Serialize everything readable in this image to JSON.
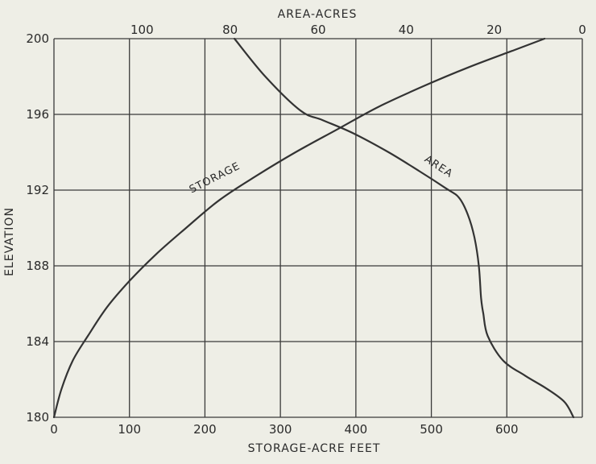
{
  "chart_data": {
    "type": "line",
    "title": "",
    "xlabel": "STORAGE-ACRE FEET",
    "x2label": "AREA-ACRES",
    "ylabel": "ELEVATION",
    "xlim": [
      0,
      700
    ],
    "x2lim": [
      120,
      0
    ],
    "ylim": [
      180,
      200
    ],
    "x_ticks": [
      0,
      100,
      200,
      300,
      400,
      500,
      600
    ],
    "x_tick_labels": [
      "0",
      "100",
      "200",
      "300",
      "400",
      "500",
      "600"
    ],
    "x2_ticks": [
      100,
      80,
      60,
      40,
      20,
      0
    ],
    "x2_tick_labels": [
      "100",
      "80",
      "60",
      "40",
      "20",
      "0"
    ],
    "y_ticks": [
      180,
      184,
      188,
      192,
      196,
      200
    ],
    "y_tick_labels": [
      "180",
      "184",
      "188",
      "192",
      "196",
      "200"
    ],
    "grid": true,
    "grid_x": [
      0,
      100,
      200,
      300,
      400,
      500,
      600,
      700
    ],
    "grid_y": [
      180,
      184,
      188,
      192,
      196,
      200
    ],
    "series": [
      {
        "name": "STORAGE",
        "axis": "bottom",
        "x": [
          0,
          10,
          25,
          45,
          70,
          100,
          135,
          175,
          220,
          270,
          320,
          375,
          430,
          490,
          550,
          610,
          650
        ],
        "y": [
          180,
          181.5,
          183,
          184.3,
          185.8,
          187.2,
          188.6,
          190.0,
          191.5,
          192.8,
          194.0,
          195.2,
          196.4,
          197.5,
          198.5,
          199.4,
          200
        ]
      },
      {
        "name": "AREA",
        "axis": "top",
        "x": [
          79,
          72,
          64,
          59,
          52,
          44,
          37,
          31,
          28,
          26,
          24.5,
          23.5,
          23,
          22.5,
          21.5,
          18,
          13,
          8,
          4,
          2
        ],
        "y": [
          200,
          198,
          196.2,
          195.7,
          195.0,
          194.0,
          193.0,
          192.1,
          191.6,
          190.7,
          189.5,
          188.0,
          186.3,
          185.5,
          184.3,
          183.0,
          182.2,
          181.5,
          180.8,
          180
        ]
      }
    ],
    "annotations": [
      {
        "text": "STORAGE",
        "x": 215,
        "y": 192.5,
        "axis": "bottom"
      },
      {
        "text": "AREA",
        "x": 33,
        "y": 193.1,
        "axis": "top"
      }
    ]
  }
}
